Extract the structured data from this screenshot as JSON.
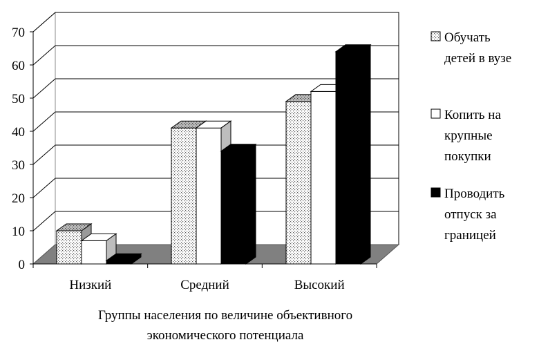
{
  "chart_data": {
    "type": "bar",
    "title": "",
    "categories": [
      "Низкий",
      "Средний",
      "Высокий"
    ],
    "xlabel": "Группы населения по величине объективного экономического потенциала",
    "xlabel_lines": [
      "Группы населения по величине объективного",
      "экономического потенциала"
    ],
    "ylabel": "",
    "ylim": [
      0,
      70
    ],
    "yticks": [
      "0",
      "10",
      "20",
      "30",
      "40",
      "50",
      "60",
      "70"
    ],
    "grid": true,
    "legend_position": "right",
    "series": [
      {
        "name": "Обучать детей в вузе",
        "legend_lines": [
          "Обучать",
          "детей в вузе"
        ],
        "values": [
          10,
          41,
          49
        ],
        "fill": "dotted",
        "color": "#d9d9d9"
      },
      {
        "name": "Копить на крупные покупки",
        "legend_lines": [
          "Копить на",
          "крупные",
          "покупки"
        ],
        "values": [
          7,
          41,
          52
        ],
        "fill": "solid",
        "color": "#ffffff"
      },
      {
        "name": "Проводить отпуск за границей",
        "legend_lines": [
          "Проводить",
          "отпуск за",
          "границей"
        ],
        "values": [
          1,
          34,
          64
        ],
        "fill": "solid",
        "color": "#000000"
      }
    ]
  }
}
